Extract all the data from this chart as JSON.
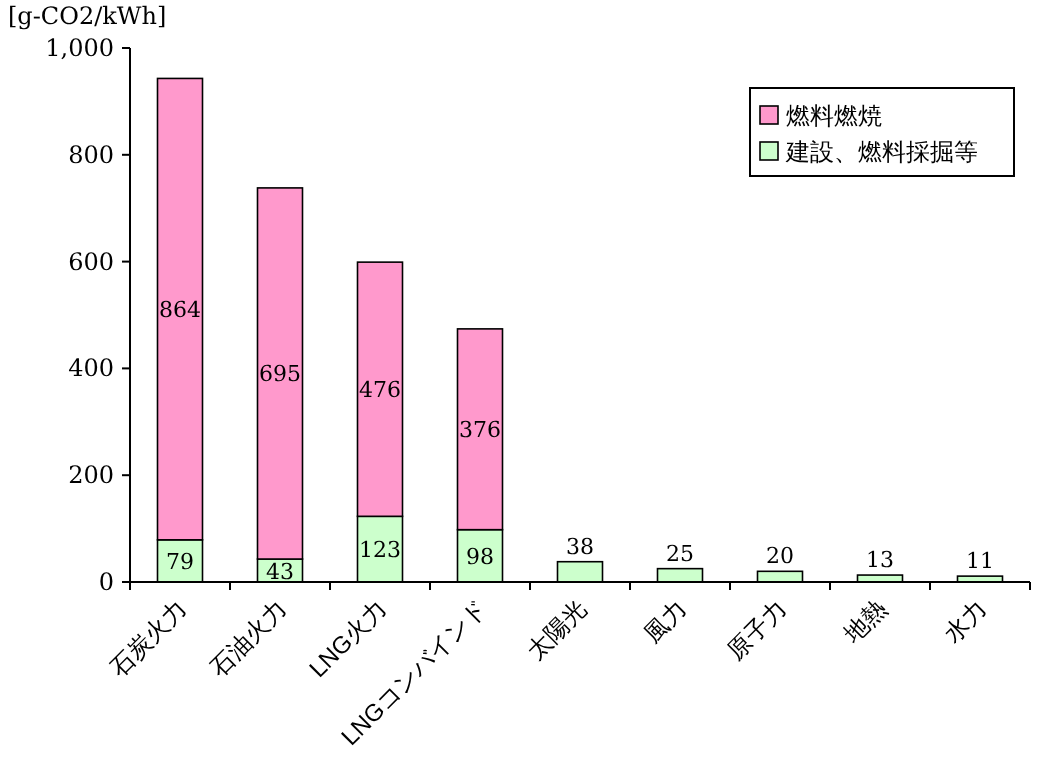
{
  "chart_data": {
    "type": "bar",
    "stacked": true,
    "ylabel": "[g-CO2/kWh]",
    "categories": [
      "石炭火力",
      "石油火力",
      "LNG火力",
      "LNGコンバインド",
      "太陽光",
      "風力",
      "原子力",
      "地熱",
      "水力"
    ],
    "series": [
      {
        "name": "建設、燃料採掘等",
        "color": "#ccffcc",
        "values": [
          79,
          43,
          123,
          98,
          38,
          25,
          20,
          13,
          11
        ]
      },
      {
        "name": "燃料燃焼",
        "color": "#ff99cc",
        "values": [
          864,
          695,
          476,
          376,
          null,
          null,
          null,
          null,
          null
        ]
      }
    ],
    "ylim": [
      0,
      1000
    ],
    "yticks": [
      0,
      200,
      400,
      600,
      800,
      {
        "value": 1000,
        "label": "1,000"
      }
    ],
    "data_labels": true,
    "legend": "top right",
    "grid": false
  }
}
